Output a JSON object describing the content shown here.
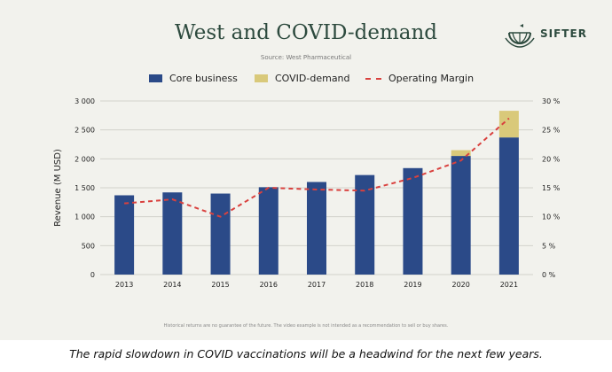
{
  "title": "West and COVID-demand",
  "source": "Source: West Pharmaceutical",
  "logo": {
    "text": "SIFTER",
    "icon": "globe-hands-icon"
  },
  "disclaimer": "Historical returns are no guarantee of the future. The video example is not intended as a recommendation to sell or buy shares.",
  "caption": "The rapid slowdown in COVID vaccinations will be a headwind for the next few years.",
  "colors": {
    "core": "#2b4a88",
    "covid": "#d9c97a",
    "margin": "#d9413e"
  },
  "chart_data": {
    "type": "bar",
    "stacked": true,
    "categories": [
      "2013",
      "2014",
      "2015",
      "2016",
      "2017",
      "2018",
      "2019",
      "2020",
      "2021"
    ],
    "series": [
      {
        "name": "Core business",
        "values": [
          1370,
          1420,
          1400,
          1510,
          1600,
          1720,
          1840,
          2050,
          2370
        ]
      },
      {
        "name": "COVID-demand",
        "values": [
          0,
          0,
          0,
          0,
          0,
          0,
          0,
          100,
          460
        ]
      }
    ],
    "line_series": {
      "name": "Operating Margin",
      "axis": "right",
      "values": [
        12.3,
        13.0,
        10.0,
        15.0,
        14.7,
        14.5,
        16.7,
        19.7,
        27.0
      ]
    },
    "ylabel": "Revenue (M USD)",
    "ylim": [
      0,
      3000
    ],
    "yticks": [
      "0",
      "500",
      "1 000",
      "1 500",
      "2 000",
      "2 500",
      "3 000"
    ],
    "y2lim": [
      0,
      30
    ],
    "y2ticks": [
      "0 %",
      "5 %",
      "10 %",
      "15 %",
      "20 %",
      "25 %",
      "30 %"
    ],
    "legend": "top-center",
    "grid": true
  }
}
